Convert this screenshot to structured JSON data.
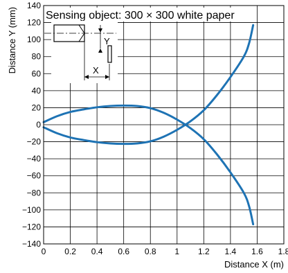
{
  "chart_data": {
    "type": "line",
    "title": "",
    "annotation": "Sensing object: 300 × 300 white paper",
    "xlabel": "Distance X (m)",
    "ylabel": "Distance Y (mm)",
    "xlim": [
      0,
      1.8
    ],
    "ylim": [
      -140,
      140
    ],
    "x_ticks": [
      0,
      0.2,
      0.4,
      0.6,
      0.8,
      1,
      1.2,
      1.4,
      1.6,
      1.8
    ],
    "x_tick_labels": [
      "0",
      "0.2",
      "0.4",
      "0.6",
      "0.8",
      "1",
      "1.2",
      "1.4",
      "1.6",
      "1.8"
    ],
    "y_ticks": [
      140,
      120,
      100,
      80,
      60,
      40,
      20,
      0,
      -20,
      -40,
      -60,
      -80,
      -100,
      -120,
      -140
    ],
    "y_tick_labels": [
      "140",
      "120",
      "100",
      "80",
      "60",
      "40",
      "20",
      "0",
      "−20",
      "−40",
      "−60",
      "−80",
      "−100",
      "−120",
      "−140"
    ],
    "grid": true,
    "line_color": "#1e73b4",
    "series": [
      {
        "points": [
          [
            0,
            3
          ],
          [
            0.1,
            10
          ],
          [
            0.2,
            15
          ],
          [
            0.3,
            18
          ],
          [
            0.4,
            20.5
          ],
          [
            0.5,
            22
          ],
          [
            0.6,
            22.5
          ],
          [
            0.7,
            22
          ],
          [
            0.8,
            19.5
          ],
          [
            0.9,
            14
          ],
          [
            1.0,
            6
          ],
          [
            1.1,
            -4
          ],
          [
            1.2,
            -17
          ],
          [
            1.3,
            -35
          ],
          [
            1.4,
            -56
          ],
          [
            1.5,
            -80
          ],
          [
            1.54,
            -96
          ],
          [
            1.57,
            -117
          ]
        ]
      },
      {
        "points": [
          [
            0,
            -3
          ],
          [
            0.1,
            -10
          ],
          [
            0.2,
            -15
          ],
          [
            0.3,
            -18
          ],
          [
            0.4,
            -20.5
          ],
          [
            0.5,
            -22
          ],
          [
            0.6,
            -22.5
          ],
          [
            0.7,
            -22
          ],
          [
            0.8,
            -19.5
          ],
          [
            0.9,
            -14
          ],
          [
            1.0,
            -6
          ],
          [
            1.1,
            4
          ],
          [
            1.2,
            17
          ],
          [
            1.3,
            35
          ],
          [
            1.4,
            56
          ],
          [
            1.5,
            80
          ],
          [
            1.54,
            96
          ],
          [
            1.57,
            117
          ]
        ]
      }
    ],
    "inset": {
      "x_label": "X",
      "y_label": "Y"
    }
  }
}
